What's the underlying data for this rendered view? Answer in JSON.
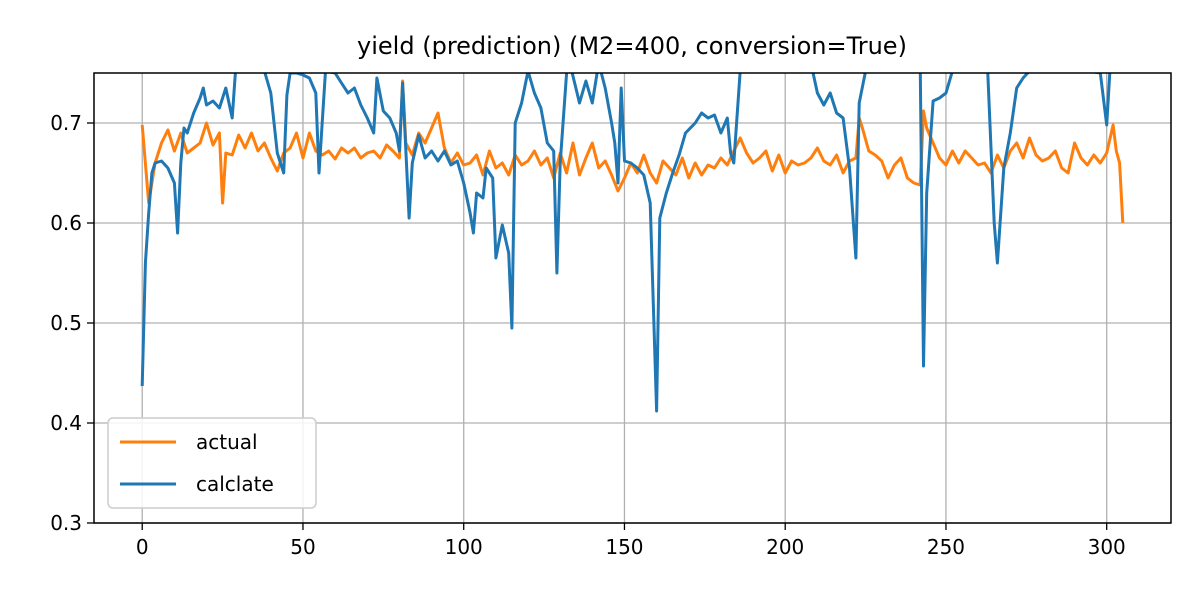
{
  "chart_data": {
    "type": "line",
    "title": "yield (prediction) (M2=400, conversion=True)",
    "xlabel": "",
    "ylabel": "",
    "xlim": [
      -15,
      320
    ],
    "ylim": [
      0.3,
      0.75
    ],
    "xticks": [
      0,
      50,
      100,
      150,
      200,
      250,
      300
    ],
    "xtick_labels": [
      "0",
      "50",
      "100",
      "150",
      "200",
      "250",
      "300"
    ],
    "yticks": [
      0.3,
      0.4,
      0.5,
      0.6,
      0.7
    ],
    "ytick_labels": [
      "0.3",
      "0.4",
      "0.5",
      "0.6",
      "0.7"
    ],
    "grid": true,
    "legend_position": "lower-left",
    "series": [
      {
        "name": "actual",
        "color": "#ff7f0e",
        "points": [
          [
            0,
            0.698
          ],
          [
            2,
            0.62
          ],
          [
            4,
            0.66
          ],
          [
            6,
            0.68
          ],
          [
            8,
            0.693
          ],
          [
            10,
            0.672
          ],
          [
            12,
            0.69
          ],
          [
            14,
            0.67
          ],
          [
            16,
            0.675
          ],
          [
            18,
            0.68
          ],
          [
            20,
            0.7
          ],
          [
            22,
            0.678
          ],
          [
            24,
            0.69
          ],
          [
            25,
            0.62
          ],
          [
            26,
            0.67
          ],
          [
            28,
            0.668
          ],
          [
            30,
            0.688
          ],
          [
            32,
            0.675
          ],
          [
            34,
            0.69
          ],
          [
            36,
            0.672
          ],
          [
            38,
            0.68
          ],
          [
            40,
            0.665
          ],
          [
            42,
            0.652
          ],
          [
            44,
            0.67
          ],
          [
            46,
            0.675
          ],
          [
            48,
            0.69
          ],
          [
            50,
            0.665
          ],
          [
            52,
            0.69
          ],
          [
            54,
            0.672
          ],
          [
            56,
            0.668
          ],
          [
            58,
            0.672
          ],
          [
            60,
            0.664
          ],
          [
            62,
            0.675
          ],
          [
            64,
            0.67
          ],
          [
            66,
            0.675
          ],
          [
            68,
            0.665
          ],
          [
            70,
            0.67
          ],
          [
            72,
            0.672
          ],
          [
            74,
            0.665
          ],
          [
            76,
            0.678
          ],
          [
            78,
            0.672
          ],
          [
            80,
            0.665
          ],
          [
            81,
            0.742
          ],
          [
            82,
            0.68
          ],
          [
            84,
            0.668
          ],
          [
            86,
            0.69
          ],
          [
            88,
            0.68
          ],
          [
            90,
            0.695
          ],
          [
            92,
            0.71
          ],
          [
            94,
            0.675
          ],
          [
            96,
            0.66
          ],
          [
            98,
            0.67
          ],
          [
            100,
            0.658
          ],
          [
            102,
            0.66
          ],
          [
            104,
            0.668
          ],
          [
            106,
            0.648
          ],
          [
            108,
            0.672
          ],
          [
            110,
            0.655
          ],
          [
            112,
            0.66
          ],
          [
            114,
            0.648
          ],
          [
            116,
            0.668
          ],
          [
            118,
            0.658
          ],
          [
            120,
            0.662
          ],
          [
            122,
            0.672
          ],
          [
            124,
            0.658
          ],
          [
            126,
            0.665
          ],
          [
            128,
            0.645
          ],
          [
            130,
            0.67
          ],
          [
            132,
            0.65
          ],
          [
            134,
            0.68
          ],
          [
            136,
            0.648
          ],
          [
            138,
            0.665
          ],
          [
            140,
            0.68
          ],
          [
            142,
            0.655
          ],
          [
            144,
            0.662
          ],
          [
            146,
            0.648
          ],
          [
            148,
            0.632
          ],
          [
            150,
            0.645
          ],
          [
            152,
            0.66
          ],
          [
            154,
            0.65
          ],
          [
            156,
            0.668
          ],
          [
            158,
            0.65
          ],
          [
            160,
            0.64
          ],
          [
            162,
            0.662
          ],
          [
            164,
            0.655
          ],
          [
            166,
            0.648
          ],
          [
            168,
            0.665
          ],
          [
            170,
            0.645
          ],
          [
            172,
            0.66
          ],
          [
            174,
            0.648
          ],
          [
            176,
            0.658
          ],
          [
            178,
            0.655
          ],
          [
            180,
            0.665
          ],
          [
            182,
            0.658
          ],
          [
            184,
            0.672
          ],
          [
            186,
            0.685
          ],
          [
            188,
            0.67
          ],
          [
            190,
            0.66
          ],
          [
            192,
            0.665
          ],
          [
            194,
            0.672
          ],
          [
            196,
            0.652
          ],
          [
            198,
            0.668
          ],
          [
            200,
            0.65
          ],
          [
            202,
            0.662
          ],
          [
            204,
            0.658
          ],
          [
            206,
            0.66
          ],
          [
            208,
            0.665
          ],
          [
            210,
            0.675
          ],
          [
            212,
            0.662
          ],
          [
            214,
            0.658
          ],
          [
            216,
            0.668
          ],
          [
            218,
            0.65
          ],
          [
            220,
            0.662
          ],
          [
            222,
            0.665
          ],
          [
            223,
            0.705
          ],
          [
            224,
            0.695
          ],
          [
            226,
            0.672
          ],
          [
            228,
            0.668
          ],
          [
            230,
            0.662
          ],
          [
            232,
            0.645
          ],
          [
            234,
            0.658
          ],
          [
            236,
            0.665
          ],
          [
            238,
            0.645
          ],
          [
            240,
            0.64
          ],
          [
            242,
            0.638
          ],
          [
            243,
            0.712
          ],
          [
            244,
            0.695
          ],
          [
            246,
            0.68
          ],
          [
            248,
            0.665
          ],
          [
            250,
            0.658
          ],
          [
            252,
            0.672
          ],
          [
            254,
            0.66
          ],
          [
            256,
            0.672
          ],
          [
            258,
            0.665
          ],
          [
            260,
            0.658
          ],
          [
            262,
            0.66
          ],
          [
            264,
            0.65
          ],
          [
            266,
            0.668
          ],
          [
            268,
            0.655
          ],
          [
            270,
            0.672
          ],
          [
            272,
            0.68
          ],
          [
            274,
            0.665
          ],
          [
            276,
            0.685
          ],
          [
            278,
            0.668
          ],
          [
            280,
            0.662
          ],
          [
            282,
            0.665
          ],
          [
            284,
            0.672
          ],
          [
            286,
            0.655
          ],
          [
            288,
            0.65
          ],
          [
            290,
            0.68
          ],
          [
            292,
            0.665
          ],
          [
            294,
            0.658
          ],
          [
            296,
            0.668
          ],
          [
            298,
            0.66
          ],
          [
            300,
            0.67
          ],
          [
            302,
            0.698
          ],
          [
            303,
            0.672
          ],
          [
            304,
            0.66
          ],
          [
            305,
            0.6
          ]
        ]
      },
      {
        "name": "calclate",
        "color": "#1f77b4",
        "points": [
          [
            0,
            0.437
          ],
          [
            1,
            0.56
          ],
          [
            2,
            0.61
          ],
          [
            3,
            0.65
          ],
          [
            4,
            0.66
          ],
          [
            6,
            0.662
          ],
          [
            8,
            0.655
          ],
          [
            10,
            0.64
          ],
          [
            11,
            0.59
          ],
          [
            12,
            0.66
          ],
          [
            13,
            0.695
          ],
          [
            14,
            0.69
          ],
          [
            16,
            0.71
          ],
          [
            18,
            0.725
          ],
          [
            19,
            0.735
          ],
          [
            20,
            0.718
          ],
          [
            22,
            0.722
          ],
          [
            24,
            0.715
          ],
          [
            26,
            0.735
          ],
          [
            28,
            0.705
          ],
          [
            29,
            0.752
          ],
          [
            32,
            0.76
          ],
          [
            36,
            0.752
          ],
          [
            38,
            0.752
          ],
          [
            40,
            0.73
          ],
          [
            42,
            0.67
          ],
          [
            44,
            0.65
          ],
          [
            45,
            0.728
          ],
          [
            46,
            0.75
          ],
          [
            48,
            0.75
          ],
          [
            50,
            0.748
          ],
          [
            52,
            0.745
          ],
          [
            54,
            0.73
          ],
          [
            55,
            0.65
          ],
          [
            57,
            0.752
          ],
          [
            60,
            0.75
          ],
          [
            62,
            0.74
          ],
          [
            64,
            0.73
          ],
          [
            66,
            0.735
          ],
          [
            68,
            0.718
          ],
          [
            70,
            0.705
          ],
          [
            72,
            0.69
          ],
          [
            73,
            0.745
          ],
          [
            75,
            0.712
          ],
          [
            77,
            0.705
          ],
          [
            79,
            0.69
          ],
          [
            80,
            0.672
          ],
          [
            81,
            0.74
          ],
          [
            83,
            0.605
          ],
          [
            84,
            0.66
          ],
          [
            86,
            0.688
          ],
          [
            88,
            0.665
          ],
          [
            90,
            0.672
          ],
          [
            92,
            0.662
          ],
          [
            94,
            0.672
          ],
          [
            96,
            0.658
          ],
          [
            98,
            0.662
          ],
          [
            100,
            0.64
          ],
          [
            102,
            0.61
          ],
          [
            103,
            0.59
          ],
          [
            104,
            0.63
          ],
          [
            106,
            0.625
          ],
          [
            107,
            0.655
          ],
          [
            109,
            0.645
          ],
          [
            110,
            0.565
          ],
          [
            112,
            0.598
          ],
          [
            114,
            0.57
          ],
          [
            115,
            0.495
          ],
          [
            116,
            0.7
          ],
          [
            118,
            0.72
          ],
          [
            120,
            0.752
          ],
          [
            122,
            0.73
          ],
          [
            124,
            0.715
          ],
          [
            126,
            0.68
          ],
          [
            128,
            0.672
          ],
          [
            129,
            0.55
          ],
          [
            130,
            0.66
          ],
          [
            132,
            0.75
          ],
          [
            133,
            0.76
          ],
          [
            136,
            0.72
          ],
          [
            138,
            0.742
          ],
          [
            140,
            0.72
          ],
          [
            142,
            0.76
          ],
          [
            144,
            0.735
          ],
          [
            146,
            0.7
          ],
          [
            147,
            0.68
          ],
          [
            148,
            0.64
          ],
          [
            149,
            0.735
          ],
          [
            150,
            0.662
          ],
          [
            152,
            0.66
          ],
          [
            154,
            0.655
          ],
          [
            156,
            0.648
          ],
          [
            158,
            0.62
          ],
          [
            160,
            0.412
          ],
          [
            161,
            0.605
          ],
          [
            163,
            0.63
          ],
          [
            165,
            0.65
          ],
          [
            167,
            0.668
          ],
          [
            169,
            0.69
          ],
          [
            172,
            0.7
          ],
          [
            174,
            0.71
          ],
          [
            176,
            0.705
          ],
          [
            178,
            0.708
          ],
          [
            180,
            0.69
          ],
          [
            182,
            0.705
          ],
          [
            183,
            0.67
          ],
          [
            184,
            0.66
          ],
          [
            186,
            0.752
          ],
          [
            190,
            0.76
          ],
          [
            195,
            0.752
          ],
          [
            200,
            0.756
          ],
          [
            205,
            0.752
          ],
          [
            208,
            0.76
          ],
          [
            210,
            0.73
          ],
          [
            212,
            0.718
          ],
          [
            214,
            0.73
          ],
          [
            216,
            0.71
          ],
          [
            218,
            0.705
          ],
          [
            220,
            0.655
          ],
          [
            222,
            0.565
          ],
          [
            223,
            0.72
          ],
          [
            225,
            0.752
          ],
          [
            228,
            0.76
          ],
          [
            232,
            0.752
          ],
          [
            236,
            0.752
          ],
          [
            240,
            0.756
          ],
          [
            242,
            0.76
          ],
          [
            243,
            0.457
          ],
          [
            244,
            0.63
          ],
          [
            246,
            0.722
          ],
          [
            248,
            0.725
          ],
          [
            250,
            0.73
          ],
          [
            252,
            0.752
          ],
          [
            256,
            0.752
          ],
          [
            260,
            0.752
          ],
          [
            263,
            0.752
          ],
          [
            265,
            0.6
          ],
          [
            266,
            0.56
          ],
          [
            268,
            0.655
          ],
          [
            270,
            0.69
          ],
          [
            272,
            0.735
          ],
          [
            274,
            0.745
          ],
          [
            276,
            0.752
          ],
          [
            280,
            0.756
          ],
          [
            284,
            0.756
          ],
          [
            288,
            0.752
          ],
          [
            290,
            0.752
          ],
          [
            294,
            0.752
          ],
          [
            298,
            0.75
          ],
          [
            300,
            0.698
          ],
          [
            301,
            0.752
          ]
        ]
      }
    ]
  }
}
